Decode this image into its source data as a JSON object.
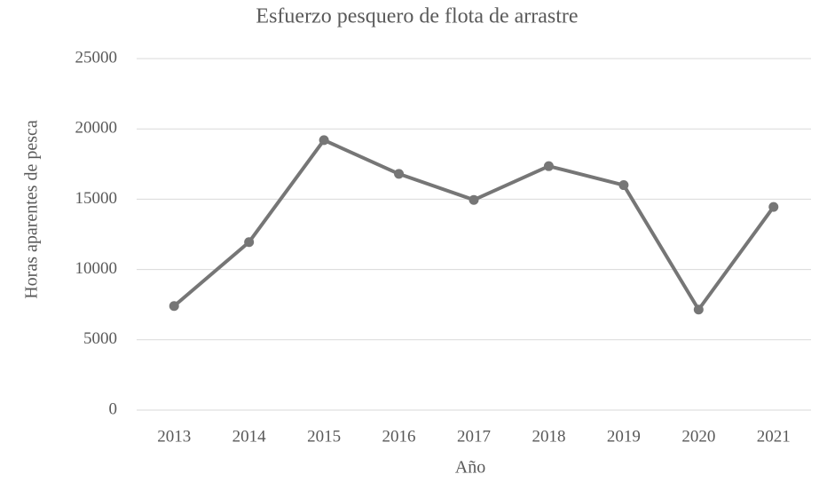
{
  "chart_data": {
    "type": "line",
    "title": "Esfuerzo pesquero de flota de arrastre",
    "x_label": "Año",
    "y_label": "Horas aparentes de pesca",
    "categories": [
      "2013",
      "2014",
      "2015",
      "2016",
      "2017",
      "2018",
      "2019",
      "2020",
      "2021"
    ],
    "values": [
      7400,
      11950,
      19200,
      16800,
      14950,
      17350,
      16000,
      7150,
      14450
    ],
    "color": "#767676",
    "ylim": [
      0,
      25000
    ],
    "yticks": [
      0,
      5000,
      10000,
      15000,
      20000,
      25000
    ],
    "grid": true
  }
}
